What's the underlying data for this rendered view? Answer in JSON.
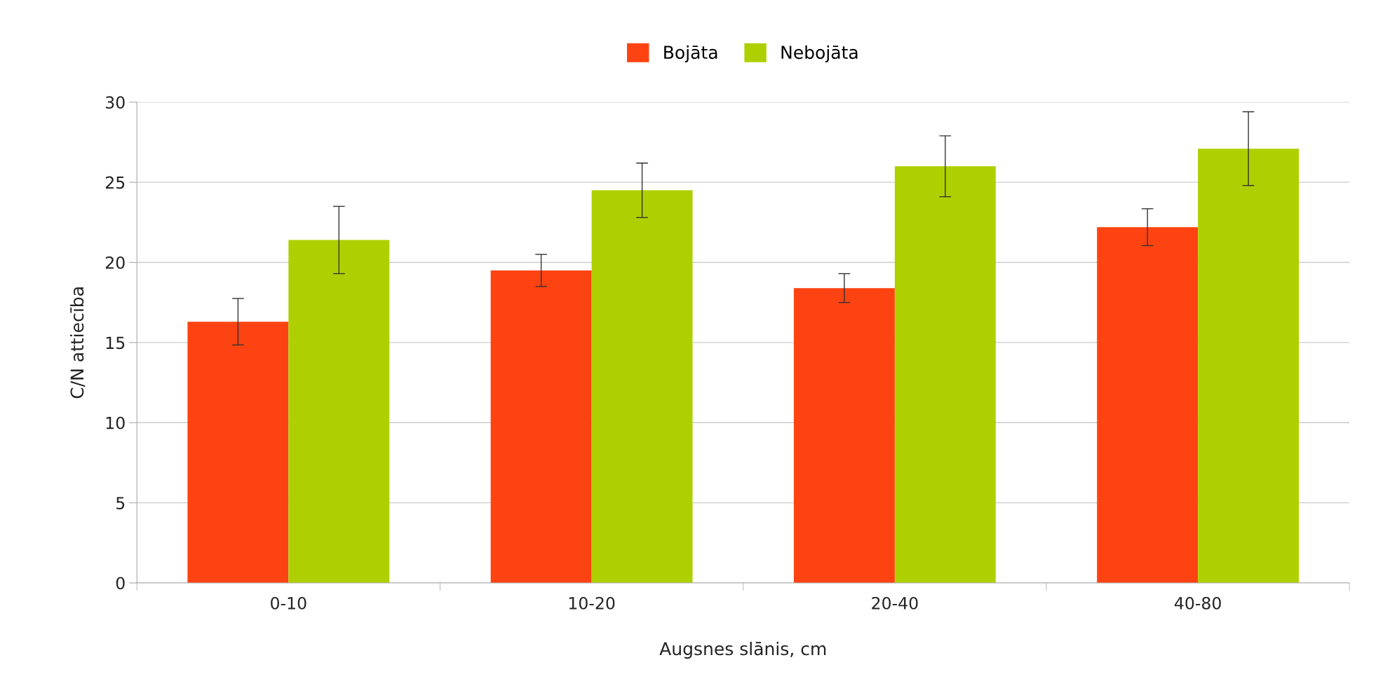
{
  "chart_data": {
    "type": "bar",
    "xlabel": "Augsnes slānis, cm",
    "ylabel": "C/N attiecība",
    "categories": [
      "0-10",
      "10-20",
      "20-40",
      "40-80"
    ],
    "series": [
      {
        "name": "Bojāta",
        "color": "#fd4311",
        "values": [
          16.3,
          19.5,
          18.4,
          22.2
        ],
        "errors": [
          1.45,
          1.0,
          0.9,
          1.15
        ]
      },
      {
        "name": "Nebojāta",
        "color": "#afd000",
        "values": [
          21.4,
          24.5,
          26.0,
          27.1
        ],
        "errors": [
          2.1,
          1.7,
          1.9,
          2.3
        ]
      }
    ],
    "ylim": [
      0,
      30
    ],
    "yticks": [
      0,
      5,
      10,
      15,
      20,
      25,
      30
    ],
    "grid": "y",
    "legend": "top"
  }
}
